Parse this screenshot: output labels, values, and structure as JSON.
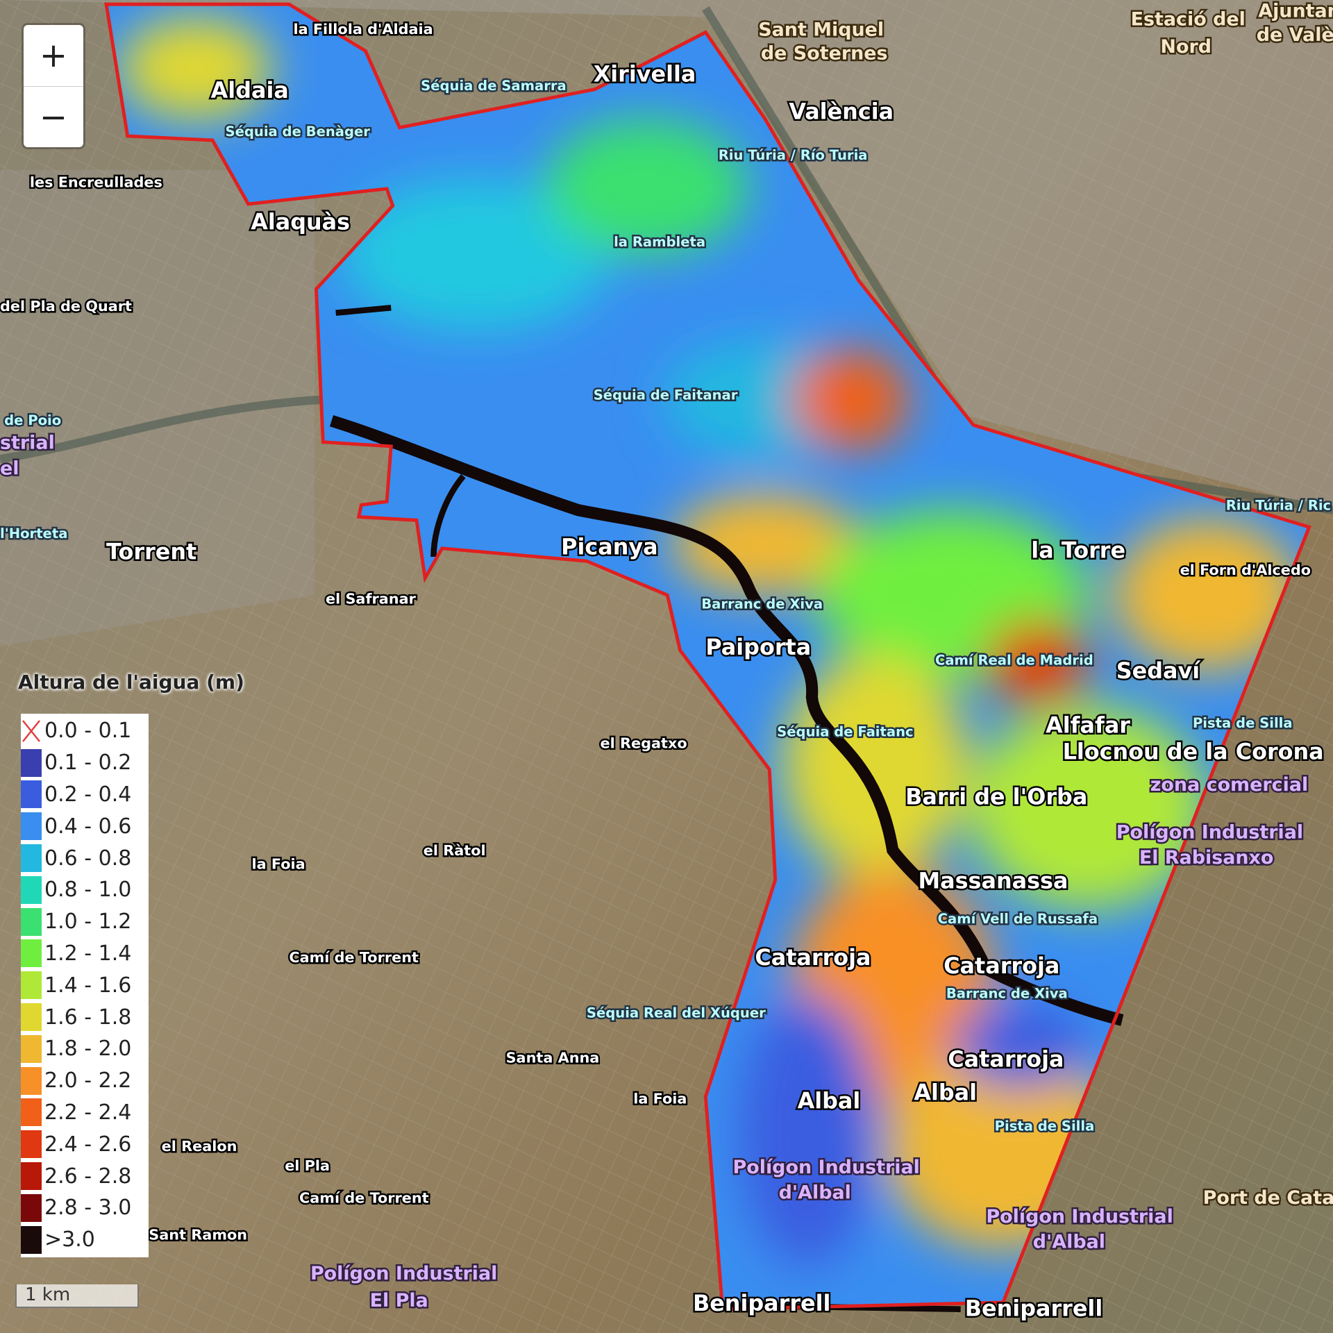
{
  "map": {
    "zoom_in": "+",
    "zoom_out": "−",
    "boundary_color": "#e02020",
    "labels": [
      "la Fillola d'Aldaia",
      "Aldaia",
      "Séquia de Samarra",
      "Xirivella",
      "Sant Miquel",
      "de Soternes",
      "València",
      "Estació del",
      "Nord",
      "Ajuntament",
      "de València",
      "Séquia de Benàger",
      "Riu Túria / Río Turia",
      "les Encreullades",
      "Alaquàs",
      "la Rambleta",
      "del Pla de Quart",
      "Séquia de Faitanar",
      "de Poio",
      "strial",
      "el",
      "Riu Túria / Ric",
      "la Torre",
      "el Forn d'Alcedo",
      "l'Horteta",
      "Torrent",
      "Picanya",
      "el Safranar",
      "Barranc de Xiva",
      "Paiporta",
      "Camí Real de Madrid",
      "Sedaví",
      "Alfafar",
      "Pista de Silla",
      "Llocnou de la Corona",
      "zona comercial",
      "Séquia de Faitanc",
      "el Regatxo",
      "Barri de l'Orba",
      "Polígon Industrial",
      "El Rabisanxo",
      "la Foia",
      "el Ràtol",
      "Massanassa",
      "Camí Vell de Russafa",
      "Camí de Torrent",
      "Catarroja",
      "Catarroja",
      "Barranc de Xiva",
      "Séquia Real del Xúquer",
      "Santa Anna",
      "Catarroja",
      "la Foia",
      "Albal",
      "Albal",
      "Pista de Silla",
      "el Realon",
      "el Pla",
      "Polígon Industrial",
      "d'Albal",
      "Camí de Torrent",
      "Polígon Industrial",
      "d'Albal",
      "Port de Catarr",
      "Sant Ramon",
      "Polígon Industrial",
      "El Pla",
      "Beniparrell",
      "Beniparrell"
    ]
  },
  "legend": {
    "title": "Altura de l'aigua (m)",
    "items": [
      {
        "label": "0.0 - 0.1",
        "color": "none"
      },
      {
        "label": "0.1 - 0.2",
        "color": "#3a3fb0"
      },
      {
        "label": "0.2 - 0.4",
        "color": "#3a5de0"
      },
      {
        "label": "0.4 - 0.6",
        "color": "#3a8ef0"
      },
      {
        "label": "0.6 - 0.8",
        "color": "#22b8e0"
      },
      {
        "label": "0.8 - 1.0",
        "color": "#20d8b8"
      },
      {
        "label": "1.0 - 1.2",
        "color": "#3ae070"
      },
      {
        "label": "1.2 - 1.4",
        "color": "#70ee40"
      },
      {
        "label": "1.4 - 1.6",
        "color": "#b0e838"
      },
      {
        "label": "1.6 - 1.8",
        "color": "#e0d830"
      },
      {
        "label": "1.8 - 2.0",
        "color": "#f0b830"
      },
      {
        "label": "2.0 - 2.2",
        "color": "#f89028"
      },
      {
        "label": "2.2 - 2.4",
        "color": "#f06018"
      },
      {
        "label": "2.4 - 2.6",
        "color": "#e03810"
      },
      {
        "label": "2.6 - 2.8",
        "color": "#b81808"
      },
      {
        "label": "2.8 - 3.0",
        "color": "#7a0808"
      },
      {
        "label": ">3.0",
        "color": "#1a0a0a"
      }
    ]
  },
  "scale": {
    "label": "1 km"
  }
}
